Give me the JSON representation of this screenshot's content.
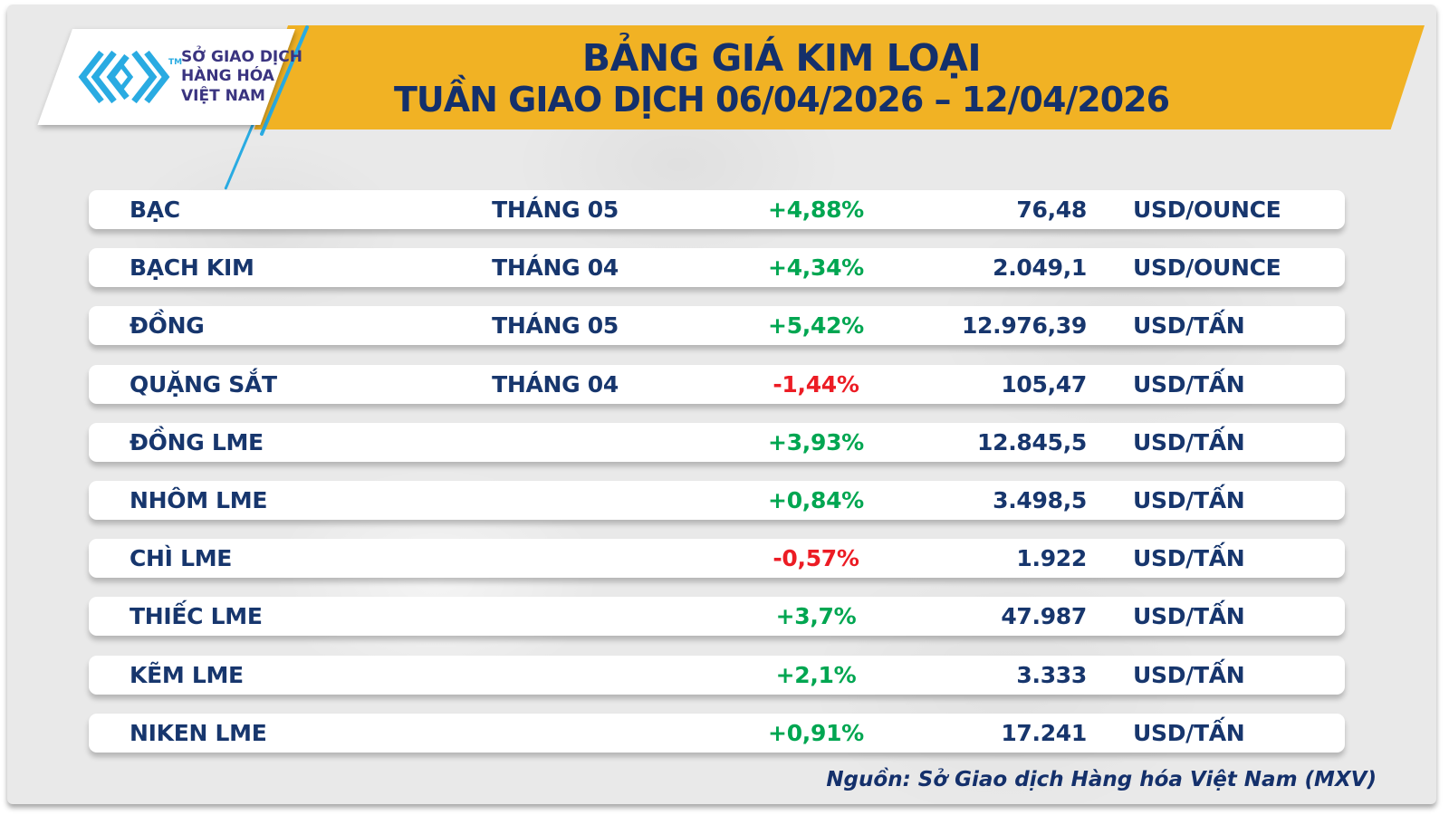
{
  "header": {
    "logo": {
      "lines": [
        "SỞ GIAO DỊCH",
        "HÀNG HÓA",
        "VIỆT NAM"
      ],
      "trademark": "TM"
    }
  },
  "chart_data": {
    "type": "table",
    "title": "BẢNG GIÁ KIM LOẠI",
    "subtitle": "TUẦN GIAO DỊCH 06/04/2026 – 12/04/2026",
    "columns": [
      "commodity",
      "contract_month",
      "weekly_change_pct",
      "price",
      "unit"
    ],
    "rows": [
      {
        "name": "BẠC",
        "month": "THÁNG 05",
        "change": "+4,88%",
        "direction": "up",
        "price": "76,48",
        "unit": "USD/OUNCE"
      },
      {
        "name": "BẠCH KIM",
        "month": "THÁNG 04",
        "change": "+4,34%",
        "direction": "up",
        "price": "2.049,1",
        "unit": "USD/OUNCE"
      },
      {
        "name": "ĐỒNG",
        "month": "THÁNG 05",
        "change": "+5,42%",
        "direction": "up",
        "price": "12.976,39",
        "unit": "USD/TẤN"
      },
      {
        "name": "QUẶNG SẮT",
        "month": "THÁNG 04",
        "change": "-1,44%",
        "direction": "down",
        "price": "105,47",
        "unit": "USD/TẤN"
      },
      {
        "name": "ĐỒNG LME",
        "month": "",
        "change": "+3,93%",
        "direction": "up",
        "price": "12.845,5",
        "unit": "USD/TẤN"
      },
      {
        "name": "NHÔM LME",
        "month": "",
        "change": "+0,84%",
        "direction": "up",
        "price": "3.498,5",
        "unit": "USD/TẤN"
      },
      {
        "name": "CHÌ LME",
        "month": "",
        "change": "-0,57%",
        "direction": "down",
        "price": "1.922",
        "unit": "USD/TẤN"
      },
      {
        "name": "THIẾC LME",
        "month": "",
        "change": "+3,7%",
        "direction": "up",
        "price": "47.987",
        "unit": "USD/TẤN"
      },
      {
        "name": "KẼM LME",
        "month": "",
        "change": "+2,1%",
        "direction": "up",
        "price": "3.333",
        "unit": "USD/TẤN"
      },
      {
        "name": "NIKEN LME",
        "month": "",
        "change": "+0,91%",
        "direction": "up",
        "price": "17.241",
        "unit": "USD/TẤN"
      }
    ],
    "change_colors": {
      "up": "#00a651",
      "down": "#ec1c24"
    },
    "layout": {
      "legend": "none",
      "grid": "off"
    }
  },
  "footer": {
    "source": "Nguồn: Sở Giao dịch Hàng hóa Việt Nam (MXV)"
  },
  "colors": {
    "banner_yellow": "#f1b224",
    "navy_text": "#17366d",
    "logo_cyan": "#29abe2",
    "logo_purple": "#3a3480",
    "canvas_grey": "#e9e9e9"
  }
}
